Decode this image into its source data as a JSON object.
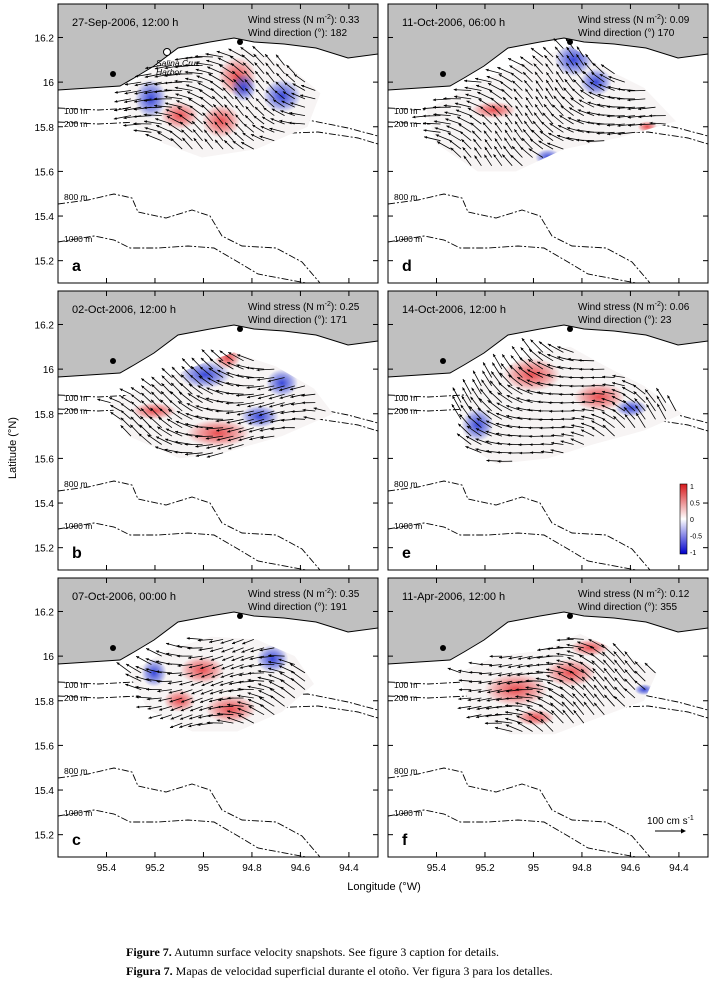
{
  "chart_data": {
    "type": "vector-field-map",
    "axes": {
      "xlabel": "Longitude (°W)",
      "ylabel": "Latitude (°N)",
      "xlim": [
        95.6,
        94.28
      ],
      "ylim": [
        15.1,
        16.35
      ],
      "xticks": [
        95.4,
        95.2,
        95,
        94.8,
        94.6,
        94.4
      ],
      "xtick_labels": [
        "95.4",
        "95.2",
        "95",
        "94.8",
        "94.6",
        "94.4"
      ],
      "yticks": [
        15.2,
        15.4,
        15.6,
        15.8,
        16,
        16.2
      ],
      "ytick_labels": [
        "15.2",
        "15.4",
        "15.6",
        "15.8",
        "16",
        "16.2"
      ]
    },
    "isobaths": [
      "100 m",
      "200 m",
      "800 m",
      "1000 m"
    ],
    "harbor_label": [
      "Salina Cruz",
      "Harbor"
    ],
    "panels": [
      {
        "letter": "a",
        "title": "27-Sep-2006, 12:00 h",
        "wind_stress_label": "Wind stress (N m",
        "wind_stress_sup": "-2",
        "wind_stress": "0.33",
        "wind_direction_label": "Wind direction (°):",
        "wind_direction": "182",
        "flow_angle": 200,
        "shape": "a"
      },
      {
        "letter": "d",
        "title": "11-Oct-2006, 06:00 h",
        "wind_stress_label": "Wind stress (N m",
        "wind_stress_sup": "-2",
        "wind_stress": "0.09",
        "wind_direction_label": "Wind direction (°)",
        "wind_direction": "170",
        "flow_angle": 205,
        "shape": "d"
      },
      {
        "letter": "b",
        "title": "02-Oct-2006, 12:00 h",
        "wind_stress_label": "Wind stress (N m",
        "wind_stress_sup": "-2",
        "wind_stress": "0.25",
        "wind_direction_label": "Wind direction (°):",
        "wind_direction": "171",
        "flow_angle": 195,
        "shape": "b"
      },
      {
        "letter": "e",
        "title": "14-Oct-2006, 12:00 h",
        "wind_stress_label": "Wind stress (N m",
        "wind_stress_sup": "-2",
        "wind_stress": "0.06",
        "wind_direction_label": "Wind direction (°):",
        "wind_direction": "23",
        "flow_angle": 210,
        "shape": "e"
      },
      {
        "letter": "c",
        "title": "07-Oct-2006, 00:00 h",
        "wind_stress_label": "Wind stress (N m",
        "wind_stress_sup": "-2",
        "wind_stress": "0.35",
        "wind_direction_label": "Wind direction (°):",
        "wind_direction": "191",
        "flow_angle": 190,
        "shape": "c"
      },
      {
        "letter": "f",
        "title": "11-Apr-2006, 12:00 h",
        "wind_stress_label": "Wind stress (N m",
        "wind_stress_sup": "-2",
        "wind_stress": "0.12",
        "wind_direction_label": "Wind direction (°):",
        "wind_direction": "355",
        "flow_angle": 200,
        "shape": "f"
      }
    ],
    "colorbar": {
      "ticks": [
        "1",
        "0.5",
        "0",
        "-0.5",
        "-1"
      ],
      "range": [
        -1,
        1
      ],
      "colors": [
        "#d7191c",
        "#ffffff",
        "#0000cc"
      ]
    },
    "scale_label": "100 cm s",
    "scale_sup": "-1"
  },
  "caption": {
    "en_bold": "Figure 7.",
    "en_text": " Autumn surface velocity snapshots. See figure 3 caption for details.",
    "es_bold": "Figura 7.",
    "es_text": " Mapas de velocidad superficial durante el otoño. Ver figura 3 para los detalles."
  },
  "colors": {
    "land": "#c0c0c0",
    "red": "#e8474a",
    "blue": "#2f3fd8"
  }
}
